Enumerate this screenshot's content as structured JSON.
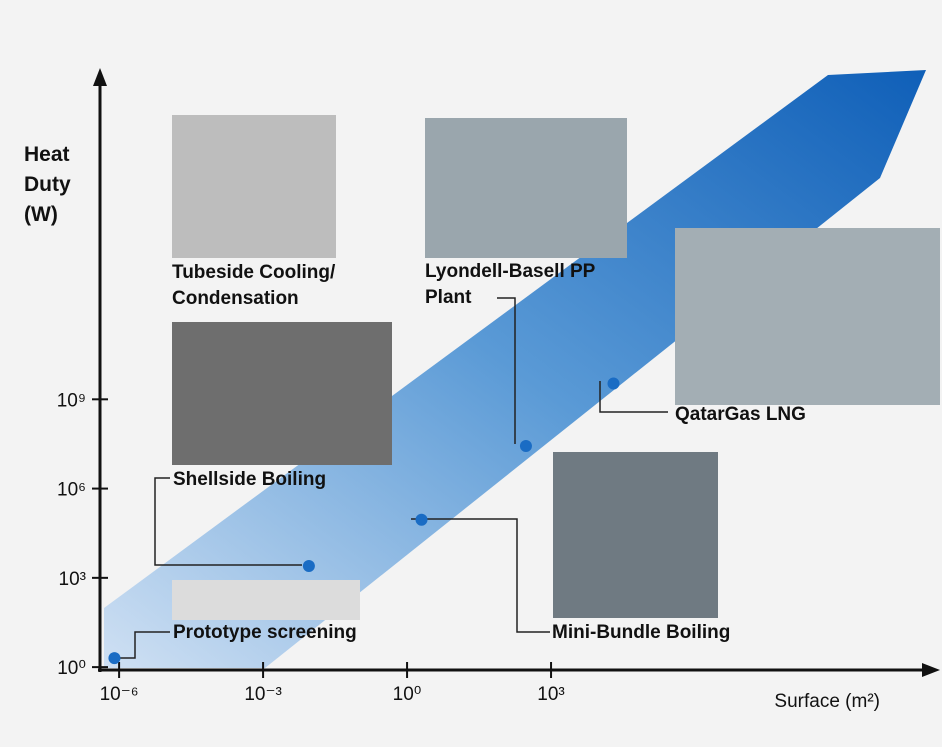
{
  "chart_data": {
    "type": "scatter",
    "x_label": "Surface (m²)",
    "y_label": "Heat Duty (W)",
    "log_x": true,
    "log_y": true,
    "xlim": [
      4e-07,
      100000000000.0
    ],
    "ylim": [
      0.8,
      1e+20
    ],
    "xticks": [
      {
        "value": 1e-06,
        "label": "10⁻⁶"
      },
      {
        "value": 0.001,
        "label": "10⁻³"
      },
      {
        "value": 1,
        "label": "10⁰"
      },
      {
        "value": 1000,
        "label": "10³"
      }
    ],
    "yticks": [
      {
        "value": 1,
        "label": "10⁰"
      },
      {
        "value": 1000,
        "label": "10³"
      },
      {
        "value": 1000000,
        "label": "10⁶"
      },
      {
        "value": 1000000000,
        "label": "10⁹"
      }
    ],
    "color": "#1a6cc4",
    "x": [
      8e-07,
      0.009,
      2,
      300,
      20000
    ],
    "y": [
      2,
      2500,
      90000,
      27000000,
      3400000000
    ],
    "labels": [
      "Prototype screening",
      "Shellside Boiling",
      "Mini-Bundle Boiling",
      "Lyondell-Basell PP Plant",
      "QatarGas LNG"
    ],
    "annotation": "Tubeside Cooling/ Condensation"
  }
}
